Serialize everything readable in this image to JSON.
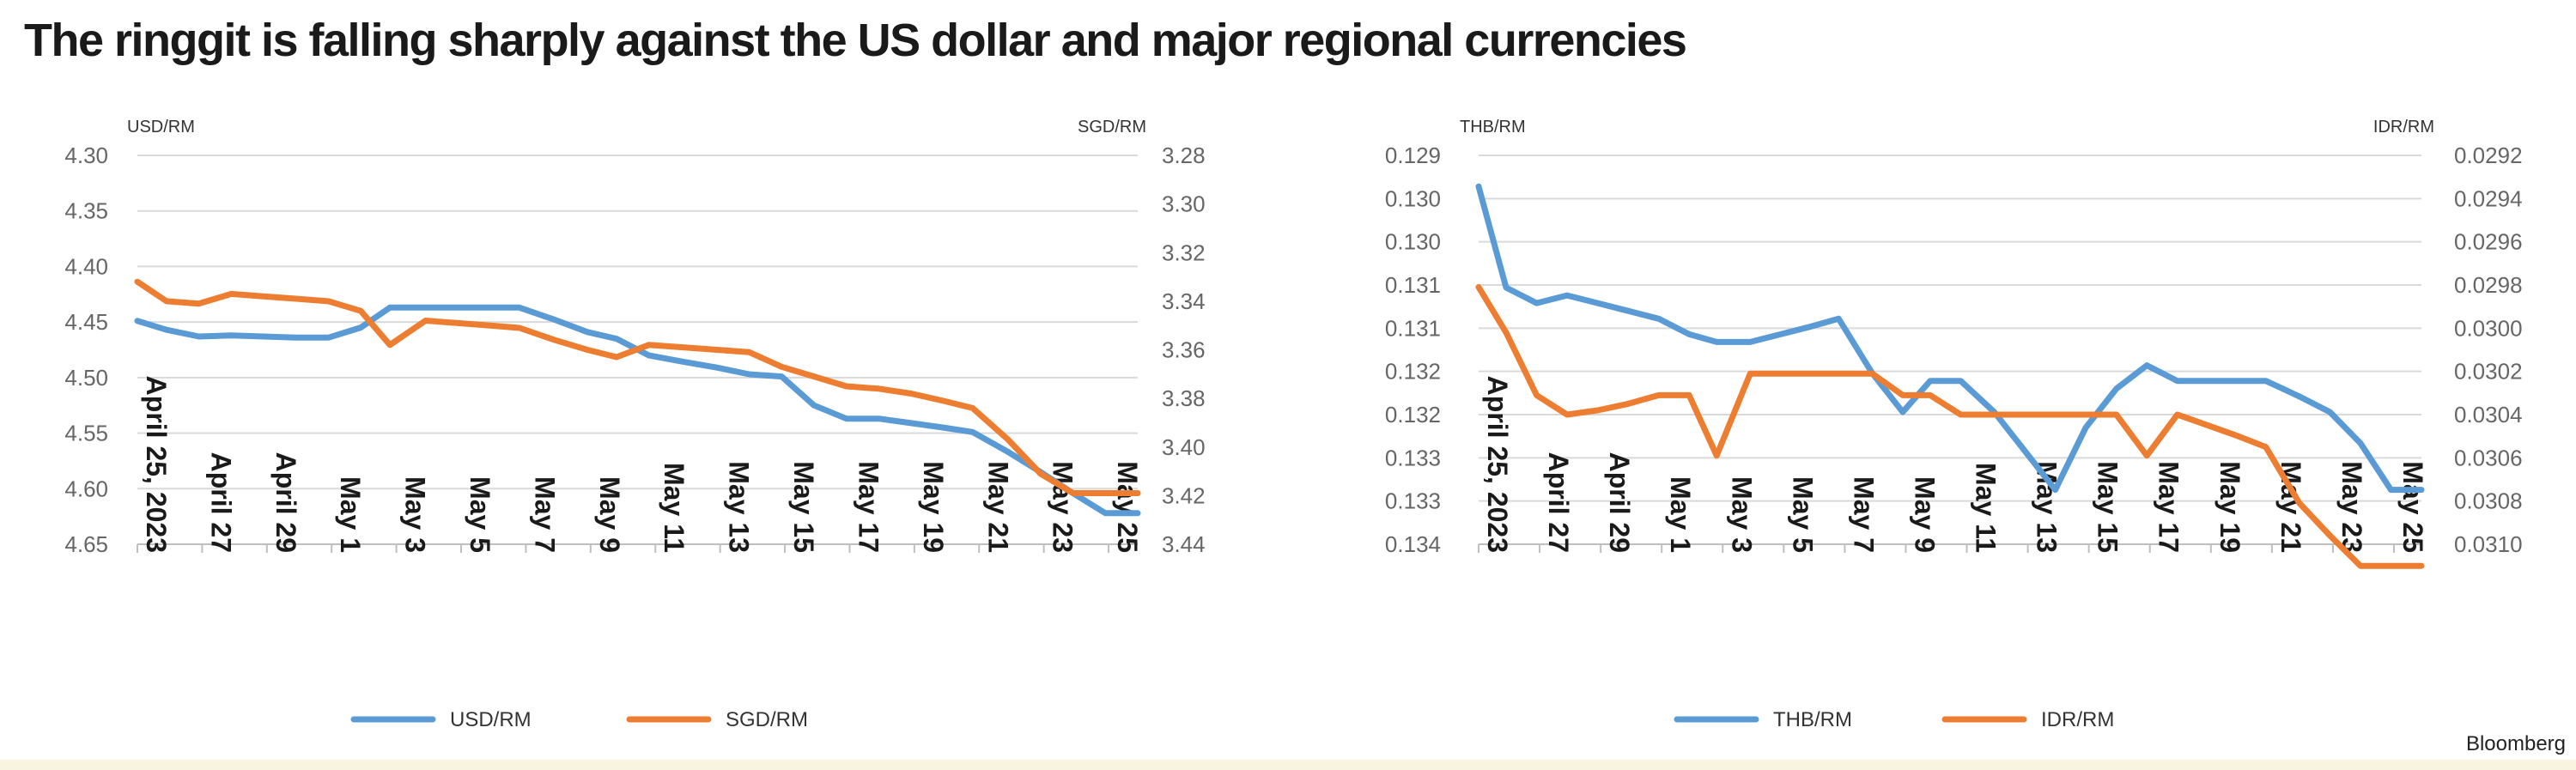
{
  "title": "The ringgit is falling sharply against the US dollar and major regional currencies",
  "source": "Bloomberg",
  "colors": {
    "blue": "#5b9bd5",
    "orange": "#ed7d31",
    "grid": "#d9d9d9"
  },
  "chart_data": [
    {
      "type": "line",
      "left_axis_label": "USD/RM",
      "right_axis_label": "SGD/RM",
      "categories": [
        "April 25, 2023",
        "April 27",
        "April 29",
        "May 1",
        "May 3",
        "May 5",
        "May 7",
        "May 9",
        "May 11",
        "May 13",
        "May 15",
        "May 17",
        "May 19",
        "May 21",
        "May 23",
        "May 25"
      ],
      "left_axis": {
        "min": 4.3,
        "max": 4.65,
        "reversed": true,
        "ticks": [
          "4.30",
          "4.35",
          "4.40",
          "4.45",
          "4.50",
          "4.55",
          "4.60",
          "4.65"
        ]
      },
      "right_axis": {
        "min": 3.28,
        "max": 3.44,
        "reversed": true,
        "ticks": [
          "3.28",
          "3.30",
          "3.32",
          "3.34",
          "3.36",
          "3.38",
          "3.40",
          "3.42",
          "3.44"
        ]
      },
      "legend": [
        "USD/RM",
        "SGD/RM"
      ],
      "legend_position": "bottom",
      "series": [
        {
          "name": "USD/RM",
          "axis": "left",
          "color": "#5b9bd5",
          "x": [
            0,
            0.9,
            1.9,
            2.9,
            3.9,
            4.9,
            5.9,
            6.9,
            7.8,
            8.9,
            9.9,
            10.9,
            11.8,
            12.9,
            13.9,
            14.8,
            15.8,
            16.9,
            17.9,
            18.9,
            19.9,
            20.9,
            21.9,
            22.9,
            23.9,
            24.9,
            25.8,
            26.9,
            27.9,
            28.9,
            29.9,
            30.9
          ],
          "y": [
            4.449,
            4.457,
            4.463,
            4.462,
            4.463,
            4.464,
            4.464,
            4.455,
            4.437,
            4.437,
            4.437,
            4.437,
            4.437,
            4.448,
            4.459,
            4.465,
            4.48,
            4.486,
            4.491,
            4.497,
            4.499,
            4.525,
            4.537,
            4.537,
            4.541,
            4.545,
            4.549,
            4.567,
            4.585,
            4.604,
            4.622,
            4.622
          ]
        },
        {
          "name": "SGD/RM",
          "axis": "right",
          "color": "#ed7d31",
          "x": [
            0,
            0.9,
            1.9,
            2.9,
            3.9,
            4.9,
            5.9,
            6.9,
            7.8,
            8.9,
            9.9,
            10.9,
            11.8,
            12.9,
            13.9,
            14.8,
            15.8,
            16.9,
            17.9,
            18.9,
            19.9,
            20.9,
            21.9,
            22.9,
            23.9,
            24.9,
            25.8,
            26.9,
            27.9,
            28.9,
            29.9,
            30.9
          ],
          "y": [
            3.332,
            3.34,
            3.341,
            3.337,
            3.338,
            3.339,
            3.34,
            3.344,
            3.358,
            3.348,
            3.349,
            3.35,
            3.351,
            3.356,
            3.36,
            3.363,
            3.358,
            3.359,
            3.36,
            3.361,
            3.367,
            3.371,
            3.375,
            3.376,
            3.378,
            3.381,
            3.384,
            3.397,
            3.411,
            3.419,
            3.419,
            3.419
          ]
        }
      ]
    },
    {
      "type": "line",
      "left_axis_label": "THB/RM",
      "right_axis_label": "IDR/RM",
      "categories": [
        "April 25, 2023",
        "April 27",
        "April 29",
        "May 1",
        "May 3",
        "May 5",
        "May 7",
        "May 9",
        "May 11",
        "May 13",
        "May 15",
        "May 17",
        "May 19",
        "May 21",
        "May 23",
        "May 25"
      ],
      "left_axis": {
        "min": 0.129,
        "max": 0.134,
        "reversed": true,
        "ticks": [
          "0.129",
          "0.130",
          "0.130",
          "0.131",
          "0.131",
          "0.132",
          "0.132",
          "0.133",
          "0.133",
          "0.134"
        ]
      },
      "right_axis": {
        "min": 0.0292,
        "max": 0.031,
        "reversed": true,
        "ticks": [
          "0.0292",
          "0.0294",
          "0.0296",
          "0.0298",
          "0.0300",
          "0.0302",
          "0.0304",
          "0.0306",
          "0.0308",
          "0.0310"
        ]
      },
      "legend": [
        "THB/RM",
        "IDR/RM"
      ],
      "legend_position": "bottom",
      "series": [
        {
          "name": "THB/RM",
          "axis": "left",
          "color": "#5b9bd5",
          "x": [
            0,
            0.9,
            1.9,
            2.9,
            3.9,
            4.9,
            5.9,
            6.9,
            7.8,
            8.9,
            9.9,
            10.9,
            11.8,
            12.9,
            13.9,
            14.8,
            15.8,
            16.9,
            17.9,
            18.9,
            19.9,
            20.9,
            21.9,
            22.9,
            23.9,
            24.9,
            25.8,
            26.9,
            27.9,
            28.9,
            29.9,
            30.9
          ],
          "y": [
            0.1294,
            0.1307,
            0.1309,
            0.1308,
            0.1309,
            0.131,
            0.1311,
            0.1313,
            0.1314,
            0.1314,
            0.1313,
            0.1312,
            0.1311,
            0.1318,
            0.1323,
            0.1319,
            0.1319,
            0.1323,
            0.1328,
            0.1333,
            0.1325,
            0.132,
            0.1317,
            0.1319,
            0.1319,
            0.1319,
            0.1319,
            0.1321,
            0.1323,
            0.1327,
            0.1333,
            0.1333
          ]
        },
        {
          "name": "IDR/RM",
          "axis": "right",
          "color": "#ed7d31",
          "x": [
            0,
            0.9,
            1.9,
            2.9,
            3.9,
            4.9,
            5.9,
            6.9,
            7.8,
            8.9,
            9.9,
            10.9,
            11.8,
            12.9,
            13.9,
            14.8,
            15.8,
            16.9,
            17.9,
            18.9,
            19.9,
            20.9,
            21.9,
            22.9,
            23.9,
            24.9,
            25.8,
            26.9,
            27.9,
            28.9,
            29.9,
            30.9
          ],
          "y": [
            0.02981,
            0.03002,
            0.03031,
            0.0304,
            0.03038,
            0.03035,
            0.03031,
            0.03031,
            0.03059,
            0.03021,
            0.03021,
            0.03021,
            0.03021,
            0.03021,
            0.03031,
            0.03031,
            0.0304,
            0.0304,
            0.0304,
            0.0304,
            0.0304,
            0.0304,
            0.03059,
            0.0304,
            0.03045,
            0.0305,
            0.03055,
            0.03081,
            0.03096,
            0.0311,
            0.0311,
            0.0311
          ]
        }
      ]
    }
  ]
}
